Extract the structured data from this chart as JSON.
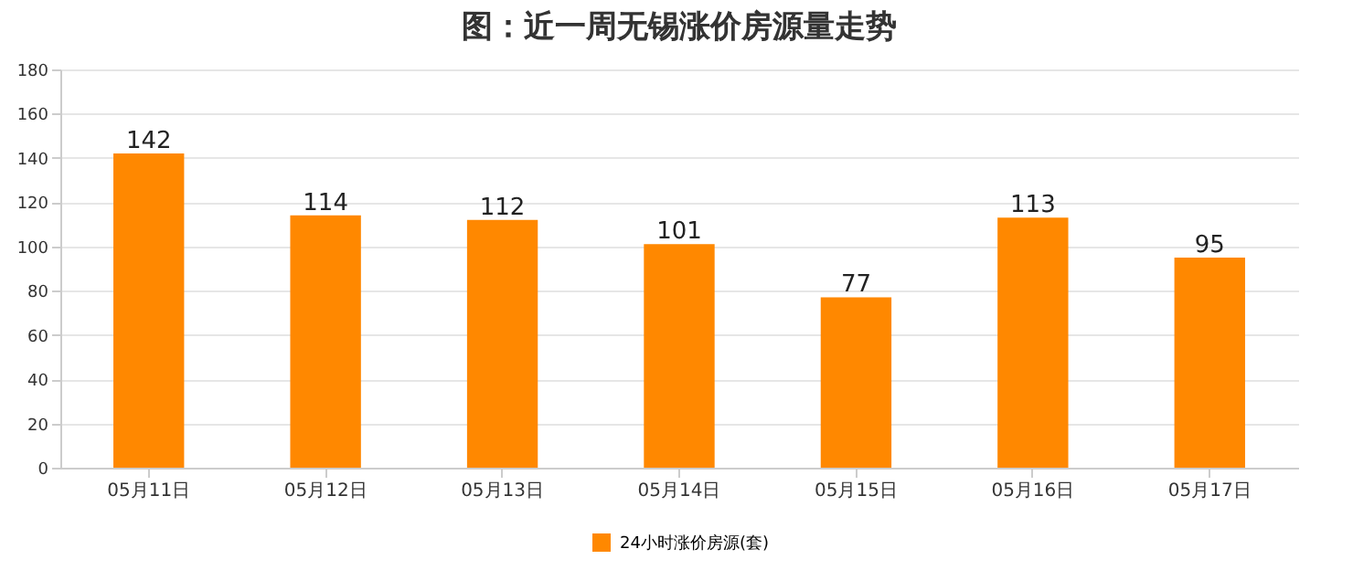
{
  "chart_data": {
    "type": "bar",
    "title": "图：近一周无锡涨价房源量走势",
    "categories": [
      "05月11日",
      "05月12日",
      "05月13日",
      "05月14日",
      "05月15日",
      "05月16日",
      "05月17日"
    ],
    "series": [
      {
        "name": "24小时涨价房源(套)",
        "color": "#ff8800",
        "values": [
          142,
          114,
          112,
          101,
          77,
          113,
          95
        ]
      }
    ],
    "ylim": [
      0,
      180
    ],
    "yticks": [
      0,
      20,
      40,
      60,
      80,
      100,
      120,
      140,
      160,
      180
    ],
    "grid": "y",
    "legend": "bottom",
    "data_labels": true
  }
}
